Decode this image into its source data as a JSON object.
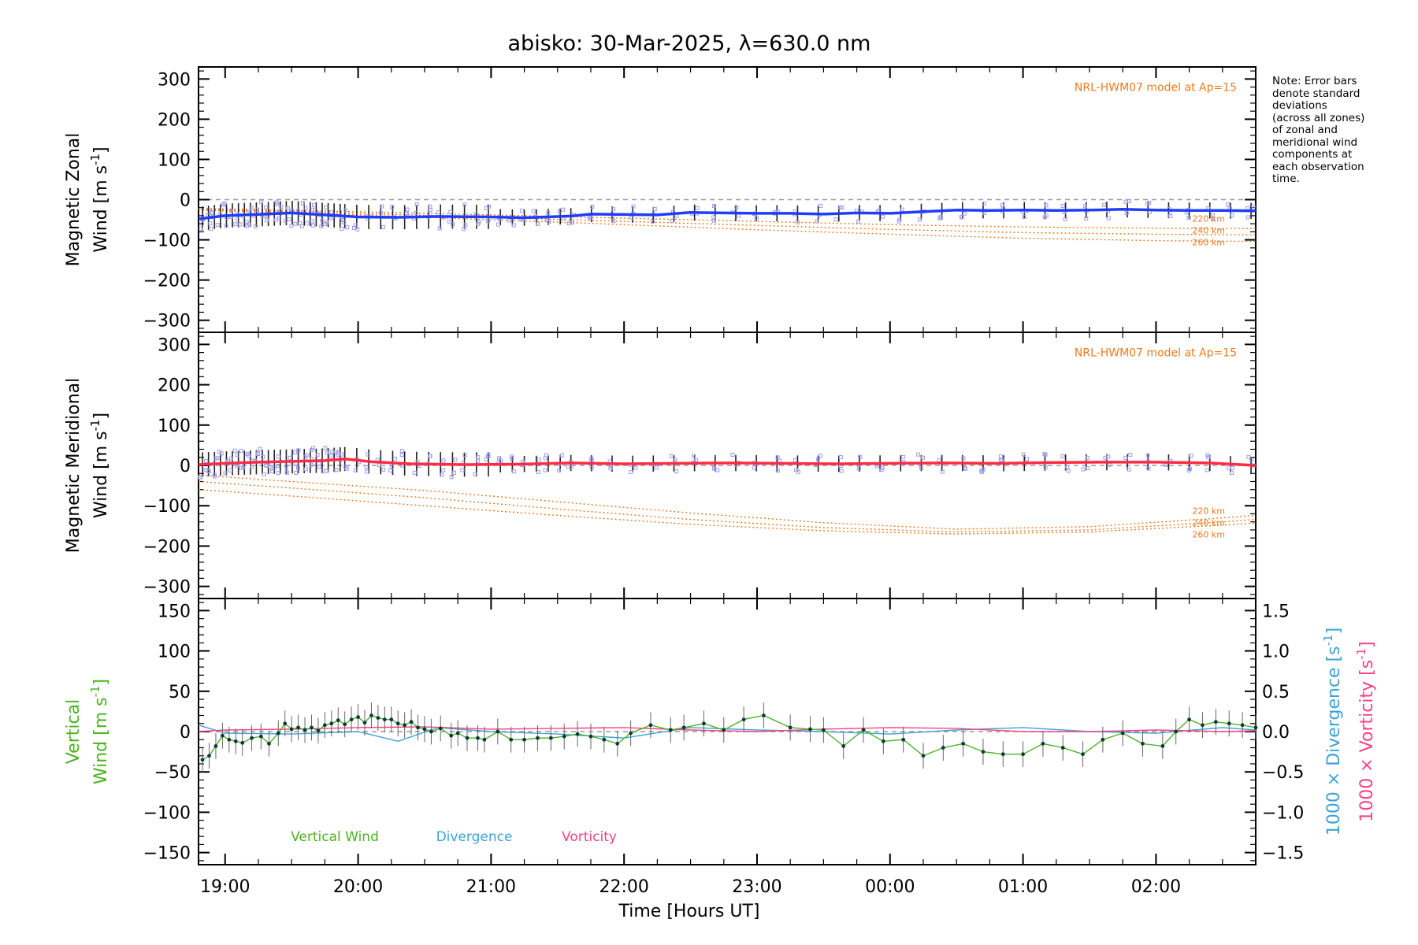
{
  "title": "abisko: 30-Mar-2025, λ=630.0 nm",
  "note": [
    "Note: Error bars",
    "denote standard",
    "deviations",
    "(across all zones)",
    "of zonal and",
    "meridional wind",
    "components at",
    "each observation",
    "time."
  ],
  "xlabel": "Time [Hours UT]",
  "colors": {
    "zonal": "#1f3cff",
    "meridional": "#ff2a45",
    "model": "#f07a1c",
    "vertical": "#4cb320",
    "divergence": "#3ba3d6",
    "vorticity": "#ff3f83",
    "zone_markers": "#9c9cf0"
  },
  "chart_data": [
    {
      "type": "line",
      "panel": "zonal",
      "ylabel_line1": "Magnetic Zonal",
      "ylabel_line2": "Wind [m s",
      "ylabel_sup": "-1",
      "ylabel_end": "]",
      "ylim": [
        -330,
        330
      ],
      "yticks": [
        300,
        200,
        100,
        0,
        -100,
        -200,
        -300
      ],
      "ytick_labels": [
        "300",
        "200",
        "100",
        "0",
        "−100",
        "−200",
        "−300"
      ],
      "xlim": [
        18.8,
        26.75
      ],
      "model_label": "NRL-HWM07 model at Ap=15",
      "model_alt_labels": [
        "220 km",
        "240 km",
        "260 km"
      ],
      "series": [
        {
          "name": "Zonal wind",
          "x": [
            18.8,
            19.0,
            19.3,
            19.5,
            19.75,
            20.0,
            20.3,
            20.6,
            21.0,
            21.25,
            21.6,
            21.75,
            22.0,
            22.25,
            22.5,
            22.75,
            23.0,
            23.25,
            23.5,
            23.75,
            24.0,
            24.25,
            24.5,
            24.75,
            25.0,
            25.25,
            25.5,
            25.75,
            26.0,
            26.25,
            26.5,
            26.75
          ],
          "y": [
            -48,
            -40,
            -36,
            -33,
            -38,
            -43,
            -44,
            -42,
            -43,
            -45,
            -41,
            -36,
            -37,
            -38,
            -32,
            -33,
            -34,
            -34,
            -36,
            -33,
            -34,
            -30,
            -26,
            -27,
            -26,
            -27,
            -26,
            -24,
            -26,
            -27,
            -27,
            -28
          ]
        },
        {
          "name": "Model 220 km",
          "x": [
            18.8,
            20.0,
            21.0,
            22.0,
            23.0,
            24.0,
            25.0,
            26.0,
            26.75
          ],
          "y": [
            -22,
            -30,
            -38,
            -46,
            -54,
            -62,
            -68,
            -71,
            -72
          ]
        },
        {
          "name": "Model 240 km",
          "x": [
            18.8,
            20.0,
            21.0,
            22.0,
            23.0,
            24.0,
            25.0,
            26.0,
            26.75
          ],
          "y": [
            -24,
            -34,
            -44,
            -54,
            -64,
            -74,
            -82,
            -86,
            -88
          ]
        },
        {
          "name": "Model 260 km",
          "x": [
            18.8,
            20.0,
            21.0,
            22.0,
            23.0,
            24.0,
            25.0,
            26.0,
            26.75
          ],
          "y": [
            -26,
            -38,
            -50,
            -62,
            -75,
            -86,
            -96,
            -102,
            -104
          ]
        }
      ]
    },
    {
      "type": "line",
      "panel": "meridional",
      "ylabel_line1": "Magnetic Meridional",
      "ylabel_line2": "Wind [m s",
      "ylabel_sup": "-1",
      "ylabel_end": "]",
      "ylim": [
        -330,
        330
      ],
      "yticks": [
        300,
        200,
        100,
        0,
        -100,
        -200,
        -300
      ],
      "ytick_labels": [
        "300",
        "200",
        "100",
        "0",
        "−100",
        "−200",
        "−300"
      ],
      "xlim": [
        18.8,
        26.75
      ],
      "model_label": "NRL-HWM07 model at Ap=15",
      "model_alt_labels": [
        "220 km",
        "240 km",
        "260 km"
      ],
      "series": [
        {
          "name": "Meridional wind",
          "x": [
            18.8,
            19.0,
            19.25,
            19.5,
            19.75,
            19.9,
            20.1,
            20.4,
            20.8,
            21.2,
            21.6,
            22.0,
            22.4,
            22.8,
            23.2,
            23.6,
            24.0,
            24.4,
            24.8,
            25.2,
            25.6,
            26.0,
            26.4,
            26.75
          ],
          "y": [
            2,
            5,
            8,
            10,
            12,
            16,
            9,
            4,
            2,
            3,
            6,
            4,
            5,
            6,
            5,
            4,
            5,
            6,
            5,
            7,
            8,
            8,
            6,
            0
          ]
        },
        {
          "name": "Model 220 km",
          "x": [
            18.8,
            19.5,
            20.5,
            21.5,
            22.5,
            23.5,
            24.5,
            25.5,
            26.5,
            26.75
          ],
          "y": [
            -24,
            -40,
            -62,
            -90,
            -118,
            -142,
            -158,
            -152,
            -130,
            -124
          ]
        },
        {
          "name": "Model 240 km",
          "x": [
            18.8,
            19.5,
            20.5,
            21.5,
            22.5,
            23.5,
            24.5,
            25.5,
            26.5,
            26.75
          ],
          "y": [
            -40,
            -56,
            -80,
            -108,
            -134,
            -154,
            -165,
            -160,
            -140,
            -134
          ]
        },
        {
          "name": "Model 260 km",
          "x": [
            18.8,
            19.5,
            20.5,
            21.5,
            22.5,
            23.5,
            24.5,
            25.5,
            26.5,
            26.75
          ],
          "y": [
            -60,
            -76,
            -100,
            -124,
            -146,
            -162,
            -170,
            -165,
            -148,
            -143
          ]
        }
      ]
    },
    {
      "type": "line",
      "panel": "vertical",
      "ylabel_line1": "Vertical",
      "ylabel_line2": "Wind [m s",
      "ylabel_sup": "-1",
      "ylabel_end": "]",
      "ylim": [
        -165,
        165
      ],
      "yticks": [
        150,
        100,
        50,
        0,
        -50,
        -100,
        -150
      ],
      "ytick_labels": [
        "150",
        "100",
        "50",
        "0",
        "−50",
        "−100",
        "−150"
      ],
      "y2lim": [
        -1.65,
        1.65
      ],
      "y2ticks": [
        1.5,
        1.0,
        0.5,
        0.0,
        -0.5,
        -1.0,
        -1.5
      ],
      "y2tick_labels": [
        "1.5",
        "1.0",
        "0.5",
        "0.0",
        "−0.5",
        "−1.0",
        "−1.5"
      ],
      "y2label_div": "1000 × Divergence [s",
      "y2label_vort": "1000 × Vorticity [s",
      "xlim": [
        18.8,
        26.75
      ],
      "xticks": [
        19,
        20,
        21,
        22,
        23,
        24,
        25,
        26
      ],
      "xtick_labels": [
        "19:00",
        "20:00",
        "21:00",
        "22:00",
        "23:00",
        "00:00",
        "01:00",
        "02:00"
      ],
      "legend": [
        "Vertical Wind",
        "Divergence",
        "Vorticity"
      ],
      "series": [
        {
          "name": "Vertical Wind",
          "x": [
            18.83,
            18.88,
            18.93,
            18.98,
            19.03,
            19.08,
            19.13,
            19.2,
            19.27,
            19.33,
            19.4,
            19.45,
            19.5,
            19.55,
            19.6,
            19.65,
            19.7,
            19.75,
            19.8,
            19.85,
            19.9,
            19.95,
            20.0,
            20.05,
            20.1,
            20.15,
            20.2,
            20.25,
            20.3,
            20.35,
            20.4,
            20.45,
            20.5,
            20.55,
            20.62,
            20.7,
            20.75,
            20.82,
            20.9,
            20.95,
            21.05,
            21.15,
            21.25,
            21.35,
            21.45,
            21.55,
            21.65,
            21.75,
            21.85,
            21.95,
            22.05,
            22.2,
            22.35,
            22.45,
            22.6,
            22.75,
            22.9,
            23.05,
            23.25,
            23.4,
            23.5,
            23.65,
            23.8,
            23.95,
            24.1,
            24.25,
            24.4,
            24.55,
            24.7,
            24.85,
            25.0,
            25.15,
            25.3,
            25.45,
            25.6,
            25.75,
            25.9,
            26.05,
            26.15,
            26.25,
            26.35,
            26.45,
            26.55,
            26.65,
            26.75
          ],
          "y": [
            -35,
            -30,
            -18,
            -5,
            -10,
            -12,
            -14,
            -8,
            -6,
            -15,
            -2,
            10,
            3,
            5,
            2,
            5,
            1,
            8,
            10,
            14,
            9,
            15,
            18,
            11,
            20,
            17,
            15,
            15,
            10,
            8,
            12,
            5,
            3,
            0,
            4,
            -5,
            -2,
            -8,
            -8,
            -10,
            0,
            -10,
            -10,
            -8,
            -8,
            -6,
            -3,
            -6,
            -10,
            -15,
            -2,
            8,
            2,
            5,
            10,
            2,
            15,
            20,
            5,
            3,
            2,
            -18,
            2,
            -12,
            -10,
            -30,
            -20,
            -15,
            -25,
            -28,
            -28,
            -15,
            -20,
            -28,
            -10,
            -2,
            -15,
            -18,
            0,
            15,
            8,
            12,
            10,
            8,
            5
          ]
        },
        {
          "name": "Divergence",
          "x": [
            18.8,
            19.0,
            19.5,
            20.0,
            20.3,
            20.6,
            21.0,
            21.5,
            22.0,
            22.5,
            23.0,
            23.5,
            24.0,
            24.5,
            25.0,
            25.5,
            26.0,
            26.5,
            26.75
          ],
          "y": [
            0.08,
            -0.02,
            -0.03,
            0.0,
            -0.12,
            0.05,
            0.0,
            -0.03,
            -0.08,
            0.05,
            0.02,
            0.0,
            -0.03,
            0.02,
            0.05,
            0.0,
            -0.02,
            0.05,
            0.02
          ]
        },
        {
          "name": "Vorticity",
          "x": [
            18.8,
            19.0,
            19.5,
            20.0,
            20.5,
            21.0,
            21.5,
            22.0,
            22.5,
            23.0,
            23.5,
            24.0,
            24.5,
            25.0,
            25.5,
            26.0,
            26.5,
            26.75
          ],
          "y": [
            0.0,
            0.02,
            0.03,
            0.05,
            0.06,
            0.03,
            0.04,
            0.05,
            0.02,
            0.0,
            0.03,
            0.05,
            0.04,
            0.0,
            0.0,
            0.02,
            0.0,
            0.01
          ]
        }
      ]
    }
  ]
}
